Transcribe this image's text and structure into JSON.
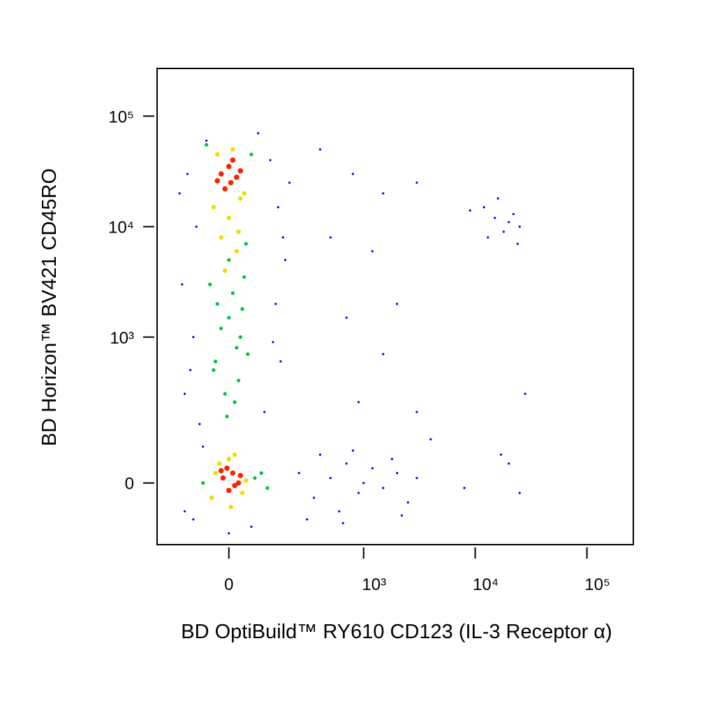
{
  "chart_data": {
    "type": "scatter",
    "xlabel": "BD OptiBuild™ RY610 CD123 (IL-3 Receptor α)",
    "ylabel": "BD Horizon™ BV421 CD45RO",
    "xscale": "biexponential",
    "yscale": "biexponential",
    "xlim": [
      -260,
      260000
    ],
    "ylim": [
      -160,
      270000
    ],
    "xticks": [
      0,
      {
        "value": 1000,
        "label": "10³"
      },
      {
        "value": 10000,
        "label": "10⁴"
      },
      {
        "value": 100000,
        "label": "10⁵"
      }
    ],
    "yticks": [
      0,
      {
        "value": 1000,
        "label": "10³"
      },
      {
        "value": 10000,
        "label": "10⁴"
      },
      {
        "value": 100000,
        "label": "10⁵"
      }
    ],
    "series": [
      {
        "color": "#0000ff",
        "x": [
          -120,
          -90,
          -140,
          -100,
          -130,
          -80,
          120,
          150,
          180,
          140,
          160,
          100,
          -60,
          80,
          -150,
          200,
          -110,
          130,
          -70,
          -100,
          60,
          0,
          -130,
          170,
          250,
          350,
          500,
          700,
          900,
          1200,
          1500,
          2000,
          2500,
          800,
          400,
          600,
          1800,
          300,
          1000,
          3000,
          2200,
          650,
          400,
          800,
          1500,
          3000,
          500,
          1200,
          2000,
          700,
          1500,
          3000,
          900,
          4000,
          15000,
          12000,
          18000,
          22000,
          25000,
          16000,
          20000,
          9000,
          13000,
          24000,
          17000,
          25000,
          28000,
          20000,
          8000
        ],
        "y": [
          30000,
          10000,
          3000,
          1000,
          300,
          150,
          40000,
          15000,
          5000,
          2000,
          600,
          200,
          60000,
          70000,
          20000,
          25000,
          500,
          900,
          80,
          -80,
          -100,
          -120,
          -60,
          8000,
          20,
          -30,
          10,
          40,
          -20,
          30,
          -10,
          20,
          -40,
          70,
          60,
          -60,
          50,
          -80,
          0,
          10,
          -70,
          -90,
          50000,
          30000,
          20000,
          25000,
          8000,
          6000,
          2000,
          1500,
          700,
          200,
          250,
          100,
          12000,
          15000,
          9000,
          13000,
          10000,
          18000,
          11000,
          14000,
          8000,
          7000,
          60,
          -20,
          300,
          40,
          -10
        ]
      },
      {
        "color": "#00c040",
        "x": [
          -50,
          -30,
          0,
          30,
          50,
          -40,
          10,
          40,
          -20,
          20,
          -60,
          60,
          0,
          -10,
          25,
          -35,
          45,
          15,
          -5,
          35,
          70,
          90,
          110,
          -70
        ],
        "y": [
          3000,
          2000,
          1500,
          1000,
          700,
          500,
          2500,
          3500,
          1200,
          800,
          55000,
          45000,
          5000,
          300,
          400,
          600,
          7000,
          250,
          180,
          1800,
          10,
          20,
          -10,
          0
        ]
      },
      {
        "color": "#e8e000",
        "x": [
          -40,
          30,
          0,
          -20,
          20,
          -30,
          10,
          40,
          -10,
          25,
          -45,
          35,
          0,
          15,
          -25,
          45,
          5,
          -35
        ],
        "y": [
          15000,
          18000,
          12000,
          8000,
          6000,
          45000,
          50000,
          20000,
          4000,
          9000,
          -30,
          -20,
          50,
          60,
          40,
          5,
          -50,
          20
        ]
      },
      {
        "color": "#ff2000",
        "x": [
          -20,
          0,
          20,
          -10,
          10,
          30,
          -30,
          5,
          -15,
          10,
          25,
          0,
          -5,
          15,
          30,
          -20
        ],
        "y": [
          30000,
          35000,
          28000,
          22000,
          40000,
          32000,
          26000,
          25000,
          10,
          20,
          0,
          -15,
          30,
          -5,
          15,
          25
        ]
      }
    ]
  }
}
